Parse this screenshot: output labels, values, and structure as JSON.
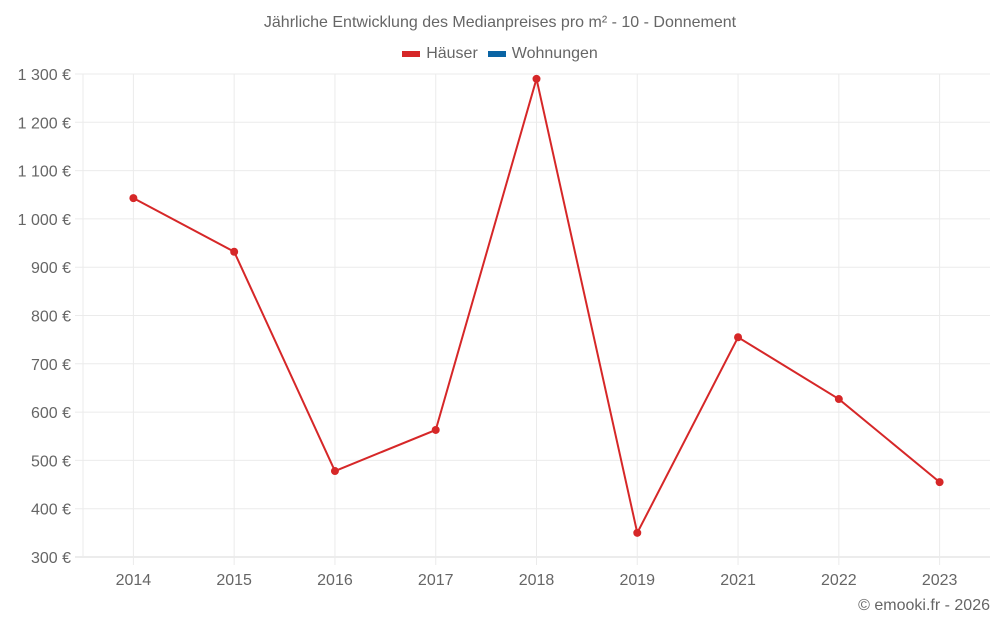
{
  "title": "Jährliche Entwicklung des Medianpreises pro m² - 10 - Donnement",
  "legend": [
    {
      "label": "Häuser",
      "color": "#d62728"
    },
    {
      "label": "Wohnungen",
      "color": "#0a64a4"
    }
  ],
  "footer": "© emooki.fr - 2026",
  "chart_data": {
    "type": "line",
    "title": "Jährliche Entwicklung des Medianpreises pro m² - 10 - Donnement",
    "xlabel": "",
    "ylabel": "",
    "categories": [
      "2014",
      "2015",
      "2016",
      "2017",
      "2018",
      "2019",
      "2021",
      "2022",
      "2023"
    ],
    "series": [
      {
        "name": "Häuser",
        "color": "#d62728",
        "values": [
          1043,
          932,
          478,
          563,
          1290,
          350,
          755,
          627,
          455
        ]
      },
      {
        "name": "Wohnungen",
        "color": "#0a64a4",
        "values": []
      }
    ],
    "ylim": [
      300,
      1300
    ],
    "yticks": [
      300,
      400,
      500,
      600,
      700,
      800,
      900,
      1000,
      1100,
      1200,
      1300
    ],
    "ytick_labels": [
      "300 €",
      "400 €",
      "500 €",
      "600 €",
      "700 €",
      "800 €",
      "900 €",
      "1 000 €",
      "1 100 €",
      "1 200 €",
      "1 300 €"
    ],
    "grid": true,
    "legend_position": "top"
  }
}
